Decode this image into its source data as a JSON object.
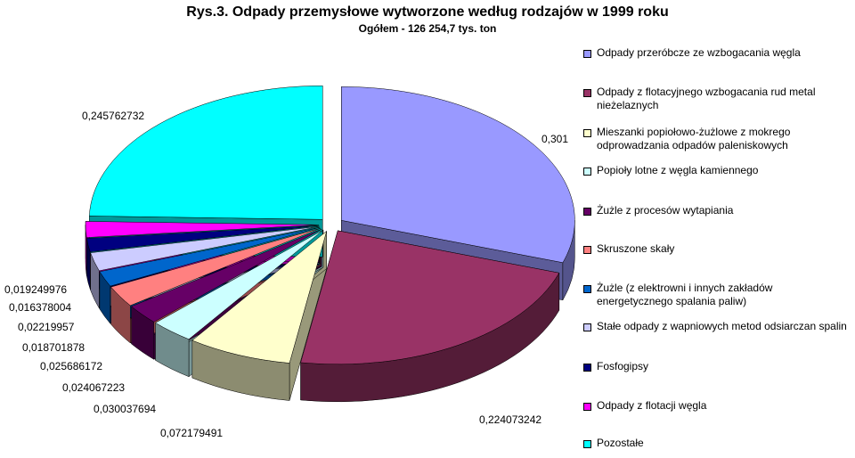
{
  "chart_data": {
    "type": "pie",
    "title": "Rys.3. Odpady przemysłowe wytworzone według rodzajów w 1999 roku",
    "subtitle": "Ogółem - 126 254,7 tys. ton",
    "categories": [
      "Odpady przeróbcze ze wzbogacania węgla",
      "Odpady z flotacyjnego wzbogacania rud metal nieżelaznych",
      "Mieszanki popiołowo-żużlowe z mokrego odprowadzania odpadów paleniskowych",
      "Popioły lotne z węgla kamiennego",
      "Żużle z procesów wytapiania",
      "Skruszone skały",
      "Żużle (z elektrowni i innych zakładów energetycznego spalania paliw)",
      "Stałe odpady z wapniowych metod odsiarczan spalin",
      "Fosfogipsy",
      "Odpady z flotacji węgla",
      "Pozostałe"
    ],
    "values": [
      0.301,
      0.224073242,
      0.072179491,
      0.030037694,
      0.024067223,
      0.025686172,
      0.018701878,
      0.02219957,
      0.016378004,
      0.019249976,
      0.245762732
    ],
    "value_labels": [
      "0,301",
      "0,224073242",
      "0,072179491",
      "0,030037694",
      "0,024067223",
      "0,025686172",
      "0,018701878",
      "0,02219957",
      "0,016378004",
      "0,019249976",
      "0,245762732"
    ],
    "colors": [
      "#9999ff",
      "#993366",
      "#ffffcc",
      "#ccffff",
      "#660066",
      "#ff8080",
      "#0066cc",
      "#ccccff",
      "#000080",
      "#ff00ff",
      "#00ffff"
    ]
  }
}
